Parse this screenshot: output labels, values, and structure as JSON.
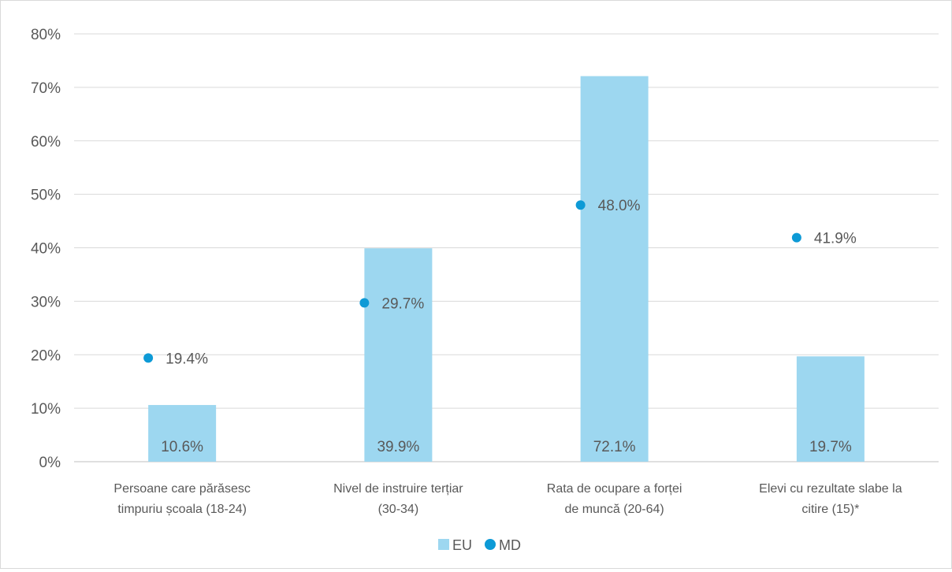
{
  "chart_data": {
    "type": "bar",
    "categories": [
      [
        "Persoane care părăsesc",
        "timpuriu școala (18-24)"
      ],
      [
        "Nivel de instruire terțiar",
        "(30-34)"
      ],
      [
        "Rata de ocupare a forței",
        "de muncă (20-64)"
      ],
      [
        "Elevi cu rezultate slabe la",
        "citire (15)*"
      ]
    ],
    "series": [
      {
        "name": "EU",
        "kind": "bar",
        "values": [
          10.6,
          39.9,
          72.1,
          19.7
        ],
        "labels": [
          "10.6%",
          "39.9%",
          "72.1%",
          "19.7%"
        ],
        "color": "#9dd7f0"
      },
      {
        "name": "MD",
        "kind": "scatter",
        "values": [
          19.4,
          29.7,
          48.0,
          41.9
        ],
        "labels": [
          "19.4%",
          "29.7%",
          "48.0%",
          "41.9%"
        ],
        "color": "#0d9ad6"
      }
    ],
    "y_ticks": [
      "0%",
      "10%",
      "20%",
      "30%",
      "40%",
      "50%",
      "60%",
      "70%",
      "80%"
    ],
    "ylim": [
      0,
      80
    ],
    "grid": true,
    "legend_position": "bottom"
  }
}
